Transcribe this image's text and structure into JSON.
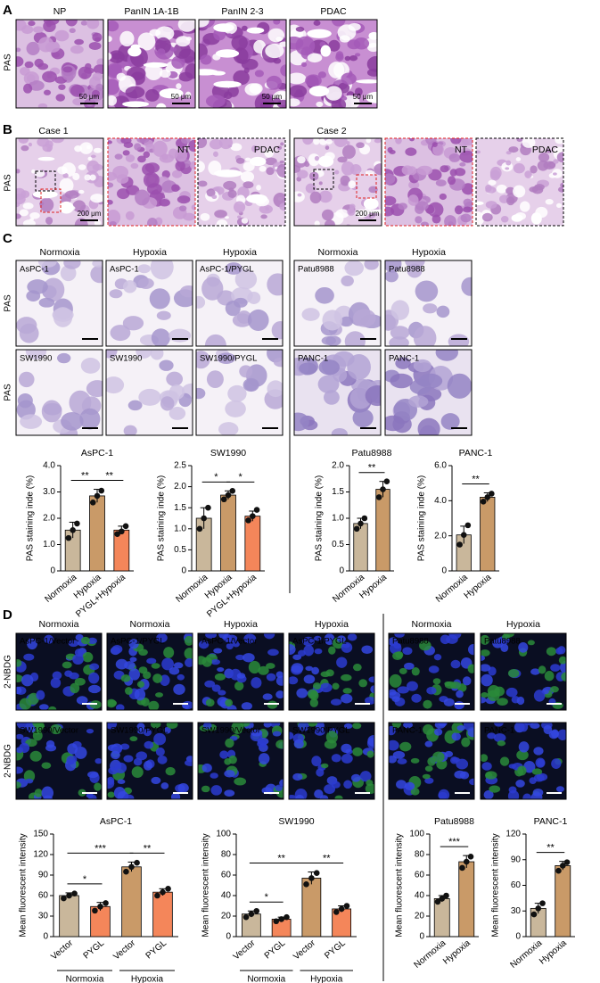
{
  "panels": {
    "A": {
      "letter": "A",
      "row_label": "PAS",
      "columns": [
        "NP",
        "PanIN 1A-1B",
        "PanIN 2-3",
        "PDAC"
      ],
      "scale_bars": [
        "50 μm",
        "50 μm",
        "50 μm",
        "50 μm"
      ]
    },
    "B": {
      "letter": "B",
      "row_label": "PAS",
      "cases": [
        {
          "title": "Case 1",
          "scale_bar": "200 μm",
          "zooms": [
            "NT",
            "PDAC"
          ]
        },
        {
          "title": "Case 2",
          "scale_bar": "200 μm",
          "zooms": [
            "NT",
            "PDAC"
          ]
        }
      ]
    },
    "C": {
      "letter": "C",
      "row_labels": [
        "PAS",
        "PAS"
      ],
      "columns": [
        "Normoxia",
        "Hypoxia",
        "Hypoxia",
        "Normoxia",
        "Hypoxia"
      ],
      "image_labels": [
        [
          "AsPC-1",
          "AsPC-1",
          "AsPC-1/PYGL",
          "Patu8988",
          "Patu8988"
        ],
        [
          "SW1990",
          "SW1990",
          "SW1990/PYGL",
          "PANC-1",
          "PANC-1"
        ]
      ]
    },
    "D": {
      "letter": "D",
      "row_labels": [
        "2-NBDG",
        "2-NBDG"
      ],
      "columns": [
        "Normoxia",
        "Normoxia",
        "Hypoxia",
        "Hypoxia",
        "Normoxia",
        "Hypoxia"
      ],
      "image_labels": [
        [
          "AsPC-1/Vector",
          "AsPC-1/PYGL",
          "AsPC-1/Vector",
          "AsPC-1/PYGL",
          "Patu8988",
          "Patu8988"
        ],
        [
          "SW1990/Vector",
          "SW1990/PYGL",
          "SW1990/Vector",
          "SW1990/PYGL",
          "PANC-1",
          "PANC-1"
        ]
      ]
    }
  },
  "chart_data": [
    {
      "type": "bar",
      "title": "AsPC-1",
      "y_label": "PAS staining inde (%)",
      "categories": [
        "Normoxia",
        "Hypoxia",
        "PYGL+Hypoxia"
      ],
      "colors": [
        "#c9b79b",
        "#c99a68",
        "#f4865a"
      ],
      "values": [
        1.55,
        2.85,
        1.55
      ],
      "errors": [
        0.3,
        0.25,
        0.15
      ],
      "points": [
        [
          1.25,
          1.55,
          1.8
        ],
        [
          2.6,
          2.85,
          3.05
        ],
        [
          1.4,
          1.5,
          1.7
        ]
      ],
      "ylim": [
        0,
        4
      ],
      "yticks": [
        0,
        {
          "value": 1,
          "label": "1.0"
        },
        {
          "value": 2,
          "label": "2.0"
        },
        {
          "value": 3,
          "label": "3.0"
        },
        {
          "value": 4,
          "label": "4.0"
        }
      ],
      "significance": [
        {
          "between": [
            0,
            1
          ],
          "label": "**"
        },
        {
          "between": [
            1,
            2
          ],
          "label": "**"
        }
      ]
    },
    {
      "type": "bar",
      "title": "SW1990",
      "y_label": "PAS staining inde (%)",
      "categories": [
        "Normoxia",
        "Hypoxia",
        "PYGL+Hypoxia"
      ],
      "colors": [
        "#c9b79b",
        "#c99a68",
        "#f4865a"
      ],
      "values": [
        1.25,
        1.8,
        1.3
      ],
      "errors": [
        0.25,
        0.1,
        0.12
      ],
      "points": [
        [
          1.0,
          1.25,
          1.5
        ],
        [
          1.7,
          1.8,
          1.9
        ],
        [
          1.2,
          1.3,
          1.45
        ]
      ],
      "ylim": [
        0,
        2.5
      ],
      "yticks": [
        0,
        0.5,
        {
          "value": 1,
          "label": "1.0"
        },
        1.5,
        {
          "value": 2,
          "label": "2.0"
        },
        2.5
      ],
      "significance": [
        {
          "between": [
            0,
            1
          ],
          "label": "*"
        },
        {
          "between": [
            1,
            2
          ],
          "label": "*"
        }
      ]
    },
    {
      "type": "bar",
      "title": "Patu8988",
      "y_label": "PAS staining inde (%)",
      "categories": [
        "Normoxia",
        "Hypoxia"
      ],
      "colors": [
        "#c9b79b",
        "#c99a68"
      ],
      "values": [
        0.9,
        1.55
      ],
      "errors": [
        0.1,
        0.15
      ],
      "points": [
        [
          0.8,
          0.9,
          1.0
        ],
        [
          1.4,
          1.55,
          1.7
        ]
      ],
      "ylim": [
        0,
        2
      ],
      "yticks": [
        0,
        0.5,
        {
          "value": 1,
          "label": "1.0"
        },
        1.5,
        {
          "value": 2,
          "label": "2.0"
        }
      ],
      "significance": [
        {
          "between": [
            0,
            1
          ],
          "label": "**"
        }
      ]
    },
    {
      "type": "bar",
      "title": "PANC-1",
      "y_label": "PAS staining inde (%)",
      "categories": [
        "Normoxia",
        "Hypoxia"
      ],
      "colors": [
        "#c9b79b",
        "#c99a68"
      ],
      "values": [
        2.05,
        4.2
      ],
      "errors": [
        0.5,
        0.25
      ],
      "points": [
        [
          1.5,
          2.05,
          2.6
        ],
        [
          3.95,
          4.2,
          4.4
        ]
      ],
      "ylim": [
        0,
        6
      ],
      "yticks": [
        0,
        {
          "value": 2,
          "label": "2.0"
        },
        {
          "value": 4,
          "label": "4.0"
        },
        {
          "value": 6,
          "label": "6.0"
        }
      ],
      "significance": [
        {
          "between": [
            0,
            1
          ],
          "label": "**"
        }
      ]
    },
    {
      "type": "bar",
      "title": "AsPC-1",
      "y_label": "Mean fluorescent intensity",
      "categories": [
        "Vector",
        "PYGL",
        "Vector",
        "PYGL"
      ],
      "groups": [
        "Normoxia",
        "Hypoxia"
      ],
      "colors": [
        "#c9b79b",
        "#f4865a",
        "#c99a68",
        "#f4865a"
      ],
      "values": [
        60,
        44,
        102,
        65
      ],
      "errors": [
        4,
        6,
        7,
        5
      ],
      "points": [
        [
          56,
          60,
          63
        ],
        [
          38,
          44,
          49
        ],
        [
          95,
          102,
          108
        ],
        [
          60,
          65,
          70
        ]
      ],
      "ylim": [
        0,
        150
      ],
      "yticks": [
        0,
        30,
        60,
        90,
        120,
        150
      ],
      "significance": [
        {
          "between": [
            0,
            1
          ],
          "label": "*"
        },
        {
          "between": [
            2,
            3
          ],
          "label": "**"
        },
        {
          "between": [
            0,
            2
          ],
          "label": "***"
        }
      ]
    },
    {
      "type": "bar",
      "title": "SW1990",
      "y_label": "Mean fluorescent intensity",
      "categories": [
        "Vector",
        "PYGL",
        "Vector",
        "PYGL"
      ],
      "groups": [
        "Normoxia",
        "Hypoxia"
      ],
      "colors": [
        "#c9b79b",
        "#f4865a",
        "#c99a68",
        "#f4865a"
      ],
      "values": [
        22,
        17,
        57,
        27
      ],
      "errors": [
        3,
        2,
        6,
        3
      ],
      "points": [
        [
          19,
          22,
          25
        ],
        [
          15,
          17,
          19
        ],
        [
          51,
          57,
          62
        ],
        [
          24,
          27,
          30
        ]
      ],
      "ylim": [
        0,
        100
      ],
      "yticks": [
        0,
        20,
        40,
        60,
        80,
        100
      ],
      "significance": [
        {
          "between": [
            0,
            1
          ],
          "label": "*"
        },
        {
          "between": [
            2,
            3
          ],
          "label": "**"
        },
        {
          "between": [
            0,
            2
          ],
          "label": "**"
        }
      ]
    },
    {
      "type": "bar",
      "title": "Patu8988",
      "y_label": "Mean fluorescent intensity",
      "categories": [
        "Normoxia",
        "Hypoxia"
      ],
      "colors": [
        "#c9b79b",
        "#c99a68"
      ],
      "values": [
        37,
        73
      ],
      "errors": [
        3,
        6
      ],
      "points": [
        [
          34,
          37,
          40
        ],
        [
          67,
          73,
          78
        ]
      ],
      "ylim": [
        0,
        100
      ],
      "yticks": [
        0,
        20,
        40,
        60,
        80,
        100
      ],
      "significance": [
        {
          "between": [
            0,
            1
          ],
          "label": "***"
        }
      ]
    },
    {
      "type": "bar",
      "title": "PANC-1",
      "y_label": "Mean fluorescent intensity",
      "categories": [
        "Normoxia",
        "Hypoxia"
      ],
      "colors": [
        "#c9b79b",
        "#c99a68"
      ],
      "values": [
        33,
        83
      ],
      "errors": [
        6,
        5
      ],
      "points": [
        [
          26,
          33,
          39
        ],
        [
          77,
          83,
          87
        ]
      ],
      "ylim": [
        0,
        120
      ],
      "yticks": [
        0,
        30,
        60,
        90,
        120
      ],
      "significance": [
        {
          "between": [
            0,
            1
          ],
          "label": "**"
        }
      ]
    }
  ]
}
